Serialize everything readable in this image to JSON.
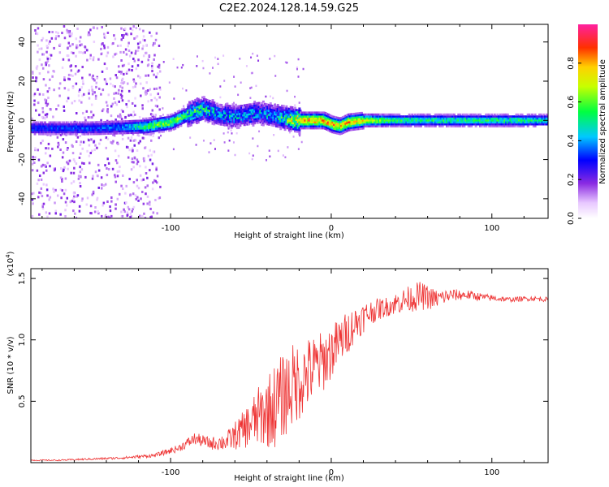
{
  "figure": {
    "title": "C2E2.2024.128.14.59.G25"
  },
  "colors": {
    "snr_line": "#ee3333",
    "background": "#ffffff",
    "axes": "#000000"
  },
  "chart_data": [
    {
      "type": "heatmap",
      "xlabel": "Height of straight line (km)",
      "ylabel": "Frequency (Hz)",
      "xlim": [
        -187,
        135
      ],
      "ylim": [
        -50,
        49
      ],
      "xticks": [
        -100,
        0,
        100
      ],
      "yticks": [
        -40,
        -20,
        0,
        20,
        40
      ],
      "colorbar": {
        "label": "Normalized spectral amplitude",
        "range": [
          0,
          1
        ],
        "ticks": [
          "0.0",
          "0.2",
          "0.4",
          "0.6",
          "0.8"
        ],
        "colormap": "rainbow (white-violet-blue-cyan-green-yellow-orange-red-magenta)"
      },
      "ridge": [
        {
          "x": -187,
          "f": -4,
          "amp": 0.35
        },
        {
          "x": -170,
          "f": -4,
          "amp": 0.35
        },
        {
          "x": -150,
          "f": -4,
          "amp": 0.35
        },
        {
          "x": -130,
          "f": -3.5,
          "amp": 0.4
        },
        {
          "x": -115,
          "f": -3,
          "amp": 0.6
        },
        {
          "x": -100,
          "f": -1,
          "amp": 0.65
        },
        {
          "x": -90,
          "f": 3,
          "amp": 0.6
        },
        {
          "x": -80,
          "f": 6,
          "amp": 0.55
        },
        {
          "x": -70,
          "f": 3,
          "amp": 0.45
        },
        {
          "x": -60,
          "f": 2,
          "amp": 0.45
        },
        {
          "x": -45,
          "f": 4,
          "amp": 0.45
        },
        {
          "x": -35,
          "f": 2,
          "amp": 0.45
        },
        {
          "x": -20,
          "f": 0,
          "amp": 0.85
        },
        {
          "x": -5,
          "f": 0,
          "amp": 0.85
        },
        {
          "x": 0,
          "f": -2,
          "amp": 0.85
        },
        {
          "x": 5,
          "f": -3,
          "amp": 0.8
        },
        {
          "x": 10,
          "f": -1,
          "amp": 0.85
        },
        {
          "x": 20,
          "f": 0,
          "amp": 0.75
        },
        {
          "x": 40,
          "f": 0,
          "amp": 0.55
        },
        {
          "x": 60,
          "f": 0,
          "amp": 0.55
        },
        {
          "x": 80,
          "f": 0,
          "amp": 0.55
        },
        {
          "x": 100,
          "f": 0,
          "amp": 0.55
        },
        {
          "x": 120,
          "f": 0,
          "amp": 0.55
        },
        {
          "x": 135,
          "f": 0,
          "amp": 0.5
        }
      ]
    },
    {
      "type": "line",
      "xlabel": "Height of straight line (km)",
      "ylabel": "SNR (10 * v/v)",
      "multiplier_label": "(x10",
      "multiplier_exponent": "4",
      "multiplier_close": ")",
      "xlim": [
        -187,
        135
      ],
      "ylim": [
        0,
        1.58
      ],
      "xticks": [
        -100,
        0,
        100
      ],
      "yticks": [
        0.5,
        1.0,
        1.5
      ],
      "ytick_labels": [
        "0.5",
        "1.0",
        "1.5"
      ],
      "series": [
        {
          "x": [
            -187,
            -170,
            -150,
            -130,
            -110,
            -95,
            -85,
            -75,
            -65,
            -55,
            -45,
            -35,
            -25,
            -15,
            -5,
            5,
            15,
            25,
            35,
            45,
            55,
            65,
            75,
            85,
            95,
            110,
            125,
            135
          ],
          "y": [
            0.02,
            0.02,
            0.03,
            0.04,
            0.06,
            0.12,
            0.2,
            0.16,
            0.18,
            0.28,
            0.4,
            0.5,
            0.65,
            0.75,
            0.85,
            1.0,
            1.15,
            1.24,
            1.28,
            1.33,
            1.37,
            1.34,
            1.37,
            1.37,
            1.35,
            1.33,
            1.34,
            1.33
          ],
          "noise": [
            0.005,
            0.005,
            0.008,
            0.01,
            0.015,
            0.03,
            0.05,
            0.05,
            0.08,
            0.15,
            0.25,
            0.35,
            0.35,
            0.3,
            0.25,
            0.2,
            0.15,
            0.1,
            0.08,
            0.1,
            0.12,
            0.08,
            0.05,
            0.04,
            0.03,
            0.02,
            0.02,
            0.02
          ]
        }
      ]
    }
  ]
}
